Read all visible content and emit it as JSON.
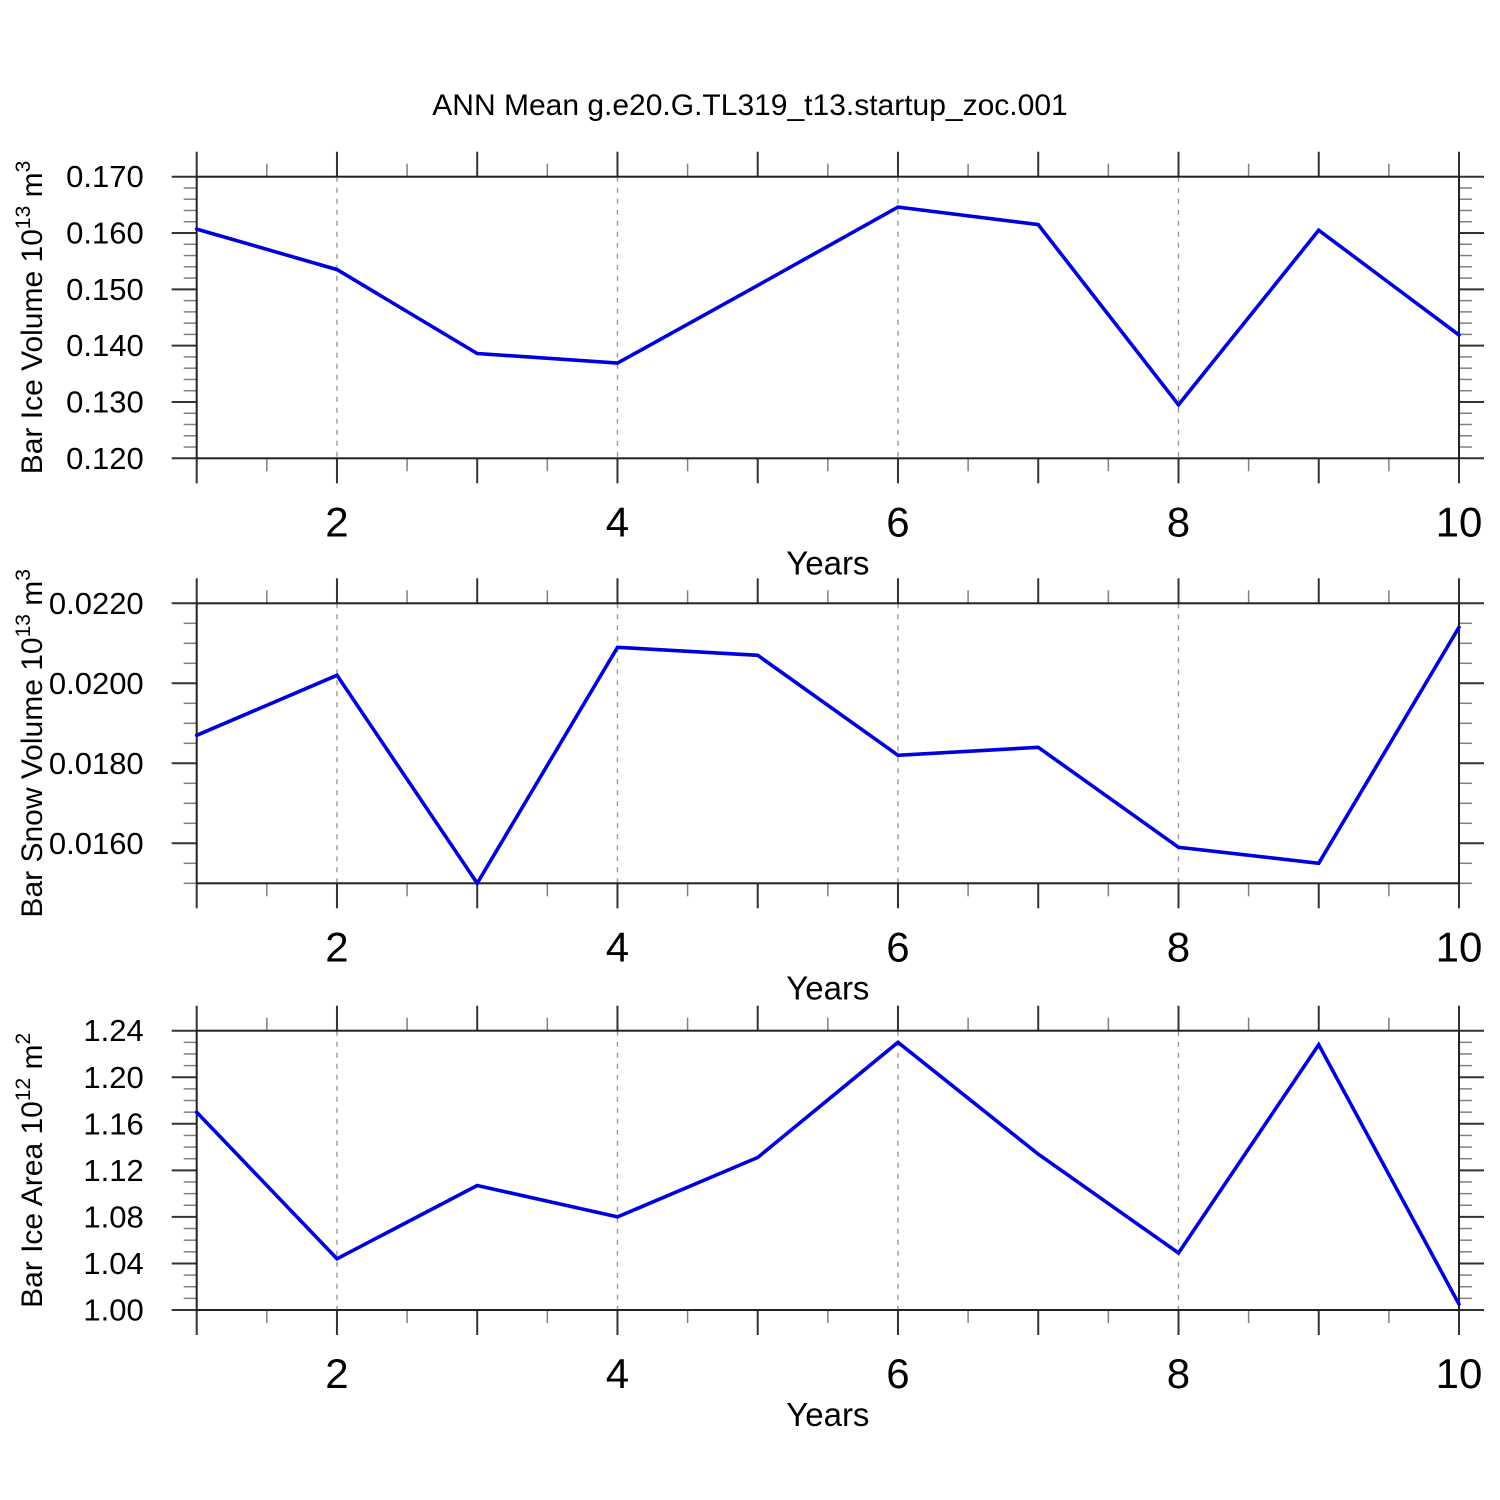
{
  "figure": {
    "title": "ANN Mean g.e20.G.TL319_t13.startup_zoc.001",
    "background": "#ffffff",
    "line_color": "#0000dd",
    "frame_color": "#222222",
    "major_tick_color": "#333333",
    "minor_tick_color": "#808080",
    "grid_color": "#9a9a9a",
    "text_color": "#000000"
  },
  "chart_data": [
    {
      "type": "line",
      "name": "bar-ice-volume",
      "ylabel": "Bar Ice Volume 10^13 m^3",
      "ylabel_segments": [
        {
          "t": "Bar Ice Volume 10"
        },
        {
          "t": "13",
          "sup": true
        },
        {
          "t": " m"
        },
        {
          "t": "3",
          "sup": true
        }
      ],
      "xlabel": "Years",
      "x": [
        1,
        2,
        3,
        4,
        5,
        6,
        7,
        8,
        9,
        10
      ],
      "values": [
        0.1607,
        0.1535,
        0.1386,
        0.1369,
        0.1507,
        0.1646,
        0.1615,
        0.1295,
        0.1605,
        0.1419
      ],
      "ylim": [
        0.12,
        0.17
      ],
      "yticks": [
        {
          "v": 0.12,
          "label": "0.120"
        },
        {
          "v": 0.13,
          "label": "0.130"
        },
        {
          "v": 0.14,
          "label": "0.140"
        },
        {
          "v": 0.15,
          "label": "0.150"
        },
        {
          "v": 0.16,
          "label": "0.160"
        },
        {
          "v": 0.17,
          "label": "0.170"
        }
      ],
      "yminor_step": 0.002,
      "xlim": [
        1,
        10
      ],
      "xticks_labeled": [
        {
          "v": 2,
          "label": "2"
        },
        {
          "v": 4,
          "label": "4"
        },
        {
          "v": 6,
          "label": "6"
        },
        {
          "v": 8,
          "label": "8"
        },
        {
          "v": 10,
          "label": "10"
        }
      ],
      "xminor_step": 0.5,
      "grid_x": [
        2,
        4,
        6,
        8
      ],
      "legend": "none",
      "grid": "vertical-dashed"
    },
    {
      "type": "line",
      "name": "bar-snow-volume",
      "ylabel": "Bar Snow Volume 10^13 m^3",
      "ylabel_segments": [
        {
          "t": "Bar Snow Volume 10"
        },
        {
          "t": "13",
          "sup": true
        },
        {
          "t": " m"
        },
        {
          "t": "3",
          "sup": true
        }
      ],
      "xlabel": "Years",
      "x": [
        1,
        2,
        3,
        4,
        5,
        6,
        7,
        8,
        9,
        10
      ],
      "values": [
        0.0187,
        0.0202,
        0.015,
        0.0209,
        0.0207,
        0.0182,
        0.0184,
        0.0159,
        0.0155,
        0.0214
      ],
      "ylim": [
        0.015,
        0.022
      ],
      "yticks": [
        {
          "v": 0.016,
          "label": "0.0160"
        },
        {
          "v": 0.018,
          "label": "0.0180"
        },
        {
          "v": 0.02,
          "label": "0.0200"
        },
        {
          "v": 0.022,
          "label": "0.0220"
        }
      ],
      "yminor_step": 0.0005,
      "xlim": [
        1,
        10
      ],
      "xticks_labeled": [
        {
          "v": 2,
          "label": "2"
        },
        {
          "v": 4,
          "label": "4"
        },
        {
          "v": 6,
          "label": "6"
        },
        {
          "v": 8,
          "label": "8"
        },
        {
          "v": 10,
          "label": "10"
        }
      ],
      "xminor_step": 0.5,
      "grid_x": [
        2,
        4,
        6,
        8
      ],
      "legend": "none",
      "grid": "vertical-dashed"
    },
    {
      "type": "line",
      "name": "bar-ice-area",
      "ylabel": "Bar Ice Area 10^12 m^2",
      "ylabel_segments": [
        {
          "t": "Bar Ice Area 10"
        },
        {
          "t": "12",
          "sup": true
        },
        {
          "t": " m"
        },
        {
          "t": "2",
          "sup": true
        }
      ],
      "xlabel": "Years",
      "x": [
        1,
        2,
        3,
        4,
        5,
        6,
        7,
        8,
        9,
        10
      ],
      "values": [
        1.17,
        1.044,
        1.107,
        1.08,
        1.131,
        1.23,
        1.134,
        1.049,
        1.228,
        1.005
      ],
      "ylim": [
        1.0,
        1.24
      ],
      "yticks": [
        {
          "v": 1.0,
          "label": "1.00"
        },
        {
          "v": 1.04,
          "label": "1.04"
        },
        {
          "v": 1.08,
          "label": "1.08"
        },
        {
          "v": 1.12,
          "label": "1.12"
        },
        {
          "v": 1.16,
          "label": "1.16"
        },
        {
          "v": 1.2,
          "label": "1.20"
        },
        {
          "v": 1.24,
          "label": "1.24"
        }
      ],
      "yminor_step": 0.01,
      "xlim": [
        1,
        10
      ],
      "xticks_labeled": [
        {
          "v": 2,
          "label": "2"
        },
        {
          "v": 4,
          "label": "4"
        },
        {
          "v": 6,
          "label": "6"
        },
        {
          "v": 8,
          "label": "8"
        },
        {
          "v": 10,
          "label": "10"
        }
      ],
      "xminor_step": 0.5,
      "grid_x": [
        2,
        4,
        6,
        8
      ],
      "legend": "none",
      "grid": "vertical-dashed"
    }
  ]
}
